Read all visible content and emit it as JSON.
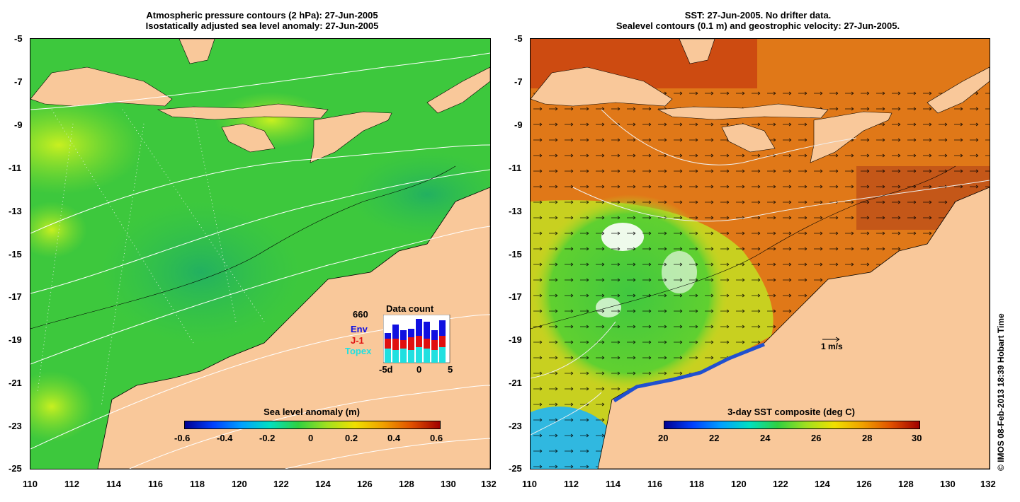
{
  "left_panel": {
    "title_line1": "Atmospheric pressure contours (2 hPa): 27-Jun-2005",
    "title_line2": "Isostatically adjusted sea level anomaly: 27-Jun-2005",
    "colorbar_label": "Sea level anomaly (m)",
    "colorbar_ticks": [
      "-0.6",
      "-0.4",
      "-0.2",
      "0",
      "0.2",
      "0.4",
      "0.6"
    ],
    "inset": {
      "count_value": "660",
      "title": "Data count",
      "legend": [
        {
          "label": "Env",
          "color": "#1010e0"
        },
        {
          "label": "J-1",
          "color": "#e01010"
        },
        {
          "label": "Topex",
          "color": "#20e0e0"
        }
      ],
      "axis_ticks": [
        "-5d",
        "0",
        "5"
      ]
    }
  },
  "right_panel": {
    "title_line1": "SST: 27-Jun-2005. No drifter data.",
    "title_line2": "Sealevel contours (0.1 m) and geostrophic velocity: 27-Jun-2005.",
    "colorbar_label": "3-day SST composite (deg C)",
    "colorbar_ticks": [
      "20",
      "22",
      "24",
      "26",
      "28",
      "30"
    ],
    "velocity_scale_label": "1 m/s"
  },
  "axes": {
    "x_ticks": [
      "110",
      "112",
      "114",
      "116",
      "118",
      "120",
      "122",
      "124",
      "126",
      "128",
      "130",
      "132"
    ],
    "y_ticks": [
      "-5",
      "-7",
      "-9",
      "-11",
      "-13",
      "-15",
      "-17",
      "-19",
      "-21",
      "-23",
      "-25"
    ]
  },
  "credit": "© IMOS 08-Feb-2013 18:39 Hobart Time",
  "colors": {
    "land": "#f9c89a",
    "ocean_green": "#3dc83d",
    "sst_warm": "#e07818"
  }
}
